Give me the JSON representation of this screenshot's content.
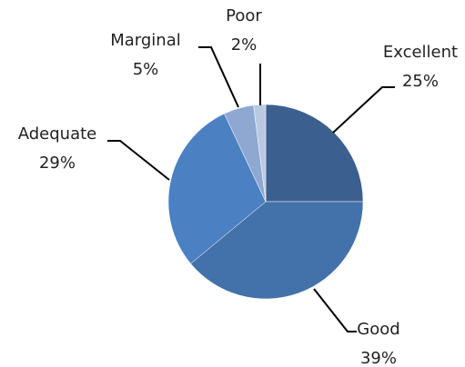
{
  "chart_data": {
    "type": "pie",
    "categories": [
      "Excellent",
      "Good",
      "Adequate",
      "Marginal",
      "Poor"
    ],
    "values": [
      25,
      39,
      29,
      5,
      2
    ],
    "value_labels": [
      "25%",
      "39%",
      "29%",
      "5%",
      "2%"
    ],
    "colors": [
      "#3b5f8e",
      "#4371aa",
      "#4b80c2",
      "#8ea8d2",
      "#bac9e2"
    ]
  }
}
